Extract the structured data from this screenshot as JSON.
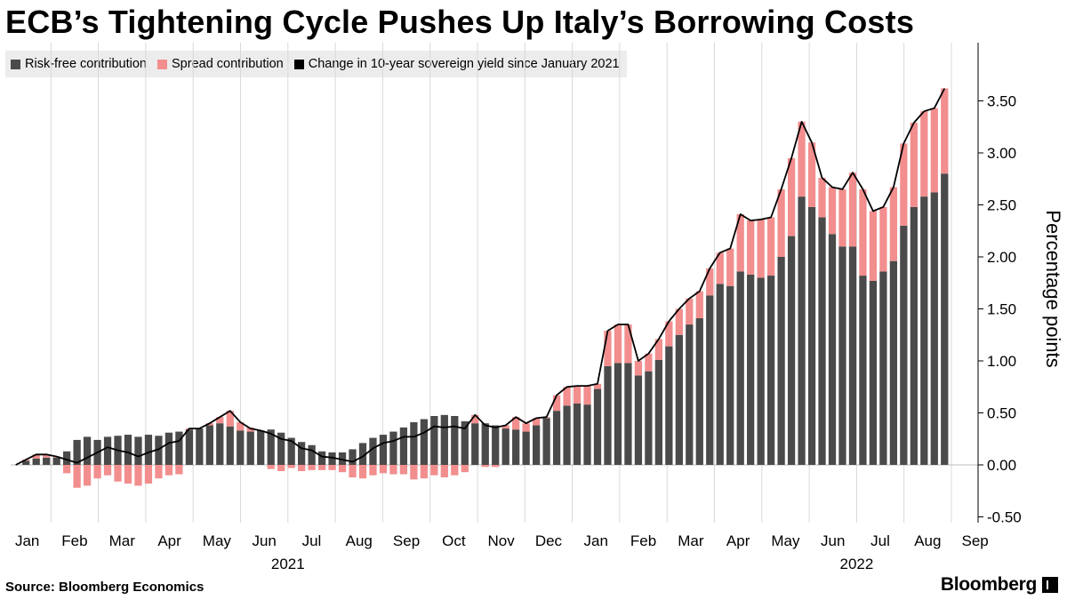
{
  "title": "ECB’s Tightening Cycle Pushes Up Italy’s Borrowing Costs",
  "source": "Source: Bloomberg Economics",
  "brand": "Bloomberg",
  "colors": {
    "risk_free": "#4a4a4a",
    "spread": "#f28e8e",
    "line": "#000000",
    "grid": "#d9d9d9",
    "legend_bg": "#ececec"
  },
  "legend": [
    {
      "label": "Risk-free contribution",
      "color": "#4a4a4a"
    },
    {
      "label": "Spread contribution",
      "color": "#f28e8e"
    },
    {
      "label": "Change in 10-year sovereign yield since January 2021",
      "color": "#000000"
    }
  ],
  "chart_data": {
    "type": "bar",
    "stacked": true,
    "title": "ECB’s Tightening Cycle Pushes Up Italy’s Borrowing Costs",
    "ylabel": "Percentage points",
    "ylim": [
      -0.5,
      4.0
    ],
    "yticks": [
      "-0.50",
      "0.00",
      "0.50",
      "1.00",
      "1.50",
      "2.00",
      "2.50",
      "3.00",
      "3.50"
    ],
    "ytick_values": [
      -0.5,
      0,
      0.5,
      1.0,
      1.5,
      2.0,
      2.5,
      3.0,
      3.5
    ],
    "y_axis_position": "right",
    "grid": "vertical",
    "legend_position": "top-left",
    "month_labels": [
      "Jan",
      "Feb",
      "Mar",
      "Apr",
      "May",
      "Jun",
      "Jul",
      "Aug",
      "Sep",
      "Oct",
      "Nov",
      "Dec",
      "Jan",
      "Feb",
      "Mar",
      "Apr",
      "May",
      "Jun",
      "Jul",
      "Aug",
      "Sep"
    ],
    "year_labels": [
      {
        "label": "2021",
        "month_index": 5.5
      },
      {
        "label": "2022",
        "month_index": 17.5
      }
    ],
    "series": [
      {
        "name": "Risk-free contribution",
        "values": [
          0.0,
          0.04,
          0.06,
          0.07,
          0.07,
          0.13,
          0.24,
          0.27,
          0.24,
          0.27,
          0.28,
          0.29,
          0.27,
          0.29,
          0.28,
          0.31,
          0.32,
          0.34,
          0.35,
          0.38,
          0.4,
          0.37,
          0.33,
          0.32,
          0.33,
          0.34,
          0.31,
          0.26,
          0.22,
          0.19,
          0.13,
          0.12,
          0.12,
          0.15,
          0.21,
          0.26,
          0.29,
          0.32,
          0.36,
          0.41,
          0.44,
          0.47,
          0.48,
          0.47,
          0.42,
          0.4,
          0.4,
          0.38,
          0.35,
          0.34,
          0.32,
          0.38,
          0.45,
          0.52,
          0.57,
          0.59,
          0.58,
          0.73,
          0.95,
          0.98,
          0.98,
          0.86,
          0.9,
          1.01,
          1.14,
          1.25,
          1.35,
          1.41,
          1.63,
          1.74,
          1.72,
          1.86,
          1.83,
          1.8,
          1.82,
          2.0,
          2.2,
          2.58,
          2.48,
          2.38,
          2.22,
          2.1,
          2.1,
          1.82,
          1.77,
          1.86,
          1.96,
          2.3,
          2.48,
          2.58,
          2.62,
          2.8
        ]
      },
      {
        "name": "Spread contribution",
        "values": [
          0.0,
          0.01,
          0.04,
          0.03,
          0.01,
          -0.08,
          -0.22,
          -0.2,
          -0.13,
          -0.1,
          -0.16,
          -0.18,
          -0.2,
          -0.18,
          -0.13,
          -0.1,
          -0.09,
          0.01,
          0.0,
          0.02,
          0.06,
          0.15,
          0.08,
          0.04,
          0.0,
          -0.04,
          -0.06,
          -0.03,
          -0.06,
          -0.05,
          -0.05,
          -0.05,
          -0.07,
          -0.12,
          -0.13,
          -0.1,
          -0.08,
          -0.09,
          -0.09,
          -0.14,
          -0.13,
          -0.1,
          -0.12,
          -0.1,
          -0.07,
          0.08,
          -0.02,
          -0.02,
          0.03,
          0.12,
          0.08,
          0.07,
          0.01,
          0.15,
          0.18,
          0.17,
          0.18,
          0.05,
          0.34,
          0.37,
          0.37,
          0.14,
          0.17,
          0.2,
          0.24,
          0.25,
          0.25,
          0.26,
          0.26,
          0.3,
          0.36,
          0.55,
          0.52,
          0.56,
          0.56,
          0.65,
          0.75,
          0.72,
          0.62,
          0.38,
          0.45,
          0.55,
          0.71,
          0.83,
          0.67,
          0.62,
          0.71,
          0.79,
          0.81,
          0.82,
          0.81,
          0.82
        ]
      },
      {
        "name": "Change in 10-year sovereign yield since January 2021",
        "type": "line",
        "values": [
          0.0,
          0.05,
          0.1,
          0.1,
          0.08,
          0.05,
          0.02,
          0.07,
          0.12,
          0.17,
          0.14,
          0.12,
          0.08,
          0.12,
          0.15,
          0.21,
          0.23,
          0.35,
          0.35,
          0.4,
          0.46,
          0.52,
          0.41,
          0.35,
          0.33,
          0.3,
          0.25,
          0.23,
          0.16,
          0.14,
          0.08,
          0.07,
          0.05,
          0.03,
          0.08,
          0.16,
          0.21,
          0.23,
          0.27,
          0.27,
          0.31,
          0.37,
          0.36,
          0.37,
          0.35,
          0.48,
          0.38,
          0.36,
          0.38,
          0.46,
          0.4,
          0.45,
          0.46,
          0.67,
          0.75,
          0.76,
          0.76,
          0.78,
          1.29,
          1.35,
          1.35,
          1.0,
          1.07,
          1.21,
          1.38,
          1.5,
          1.6,
          1.67,
          1.89,
          2.04,
          2.08,
          2.41,
          2.35,
          2.36,
          2.38,
          2.65,
          2.95,
          3.3,
          3.1,
          2.76,
          2.67,
          2.65,
          2.81,
          2.65,
          2.44,
          2.48,
          2.67,
          3.09,
          3.29,
          3.4,
          3.43,
          3.62
        ]
      }
    ]
  }
}
